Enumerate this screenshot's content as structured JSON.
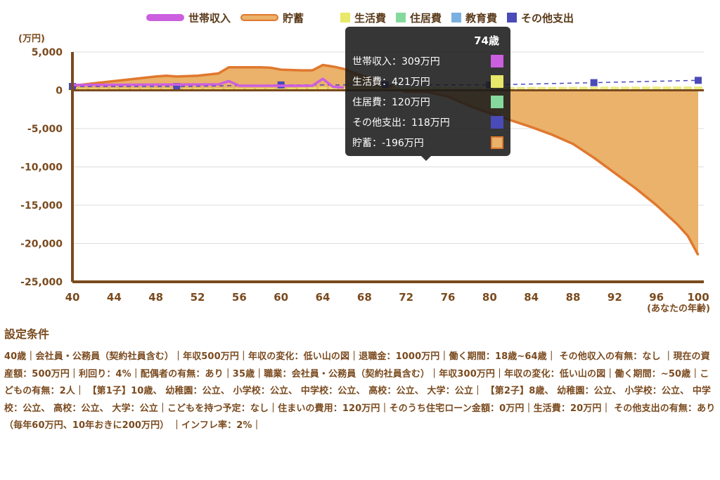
{
  "chart_data": {
    "type": "area",
    "unit_label": "(万円)",
    "xlabel": "(あなたの年齢)",
    "ylim": [
      -25000,
      5000
    ],
    "xlim": [
      40,
      100
    ],
    "y_ticks": [
      "5,000",
      "0",
      "-5,000",
      "-10,000",
      "-15,000",
      "-20,000",
      "-25,000"
    ],
    "y_tick_values": [
      5000,
      0,
      -5000,
      -10000,
      -15000,
      -20000,
      -25000
    ],
    "x_ticks": [
      "40",
      "44",
      "48",
      "52",
      "56",
      "60",
      "64",
      "68",
      "72",
      "76",
      "80",
      "84",
      "88",
      "92",
      "96",
      "100"
    ],
    "x_tick_values": [
      40,
      44,
      48,
      52,
      56,
      60,
      64,
      68,
      72,
      76,
      80,
      84,
      88,
      92,
      96,
      100
    ],
    "legend": [
      {
        "name": "世帯収入",
        "kind": "line",
        "color": "#cc5fe0"
      },
      {
        "name": "貯蓄",
        "kind": "area",
        "color": "#e0782e",
        "fill": "#eab26a"
      },
      {
        "name": "生活費",
        "kind": "bar",
        "color": "#e8e86a"
      },
      {
        "name": "住居費",
        "kind": "bar",
        "color": "#86d99c"
      },
      {
        "name": "教育費",
        "kind": "bar",
        "color": "#7ab0e0"
      },
      {
        "name": "その他支出",
        "kind": "bar",
        "color": "#4a4ab8"
      }
    ],
    "series": [
      {
        "name": "世帯収入",
        "x": [
          40,
          44,
          48,
          50,
          52,
          54,
          55,
          56,
          58,
          60,
          62,
          63,
          64,
          65,
          66
        ],
        "values": [
          700,
          720,
          740,
          760,
          770,
          780,
          1200,
          600,
          600,
          600,
          600,
          600,
          1500,
          450,
          350
        ]
      },
      {
        "name": "貯蓄",
        "x": [
          40,
          44,
          48,
          49,
          50,
          52,
          54,
          55,
          58,
          59,
          60,
          62,
          63,
          64,
          65,
          66,
          68,
          70,
          72,
          74,
          76,
          78,
          80,
          82,
          84,
          86,
          88,
          90,
          92,
          94,
          96,
          98,
          99,
          100
        ],
        "values": [
          600,
          1200,
          1800,
          1900,
          1800,
          1900,
          2200,
          3000,
          3000,
          2950,
          2700,
          2600,
          2600,
          3300,
          3100,
          2800,
          1800,
          700,
          -200,
          -196,
          -800,
          -2000,
          -3000,
          -3900,
          -4800,
          -5800,
          -7000,
          -8800,
          -10800,
          -12800,
          -15000,
          -17500,
          -19000,
          -21500
        ]
      },
      {
        "name": "生活費",
        "x": [
          40,
          50,
          60,
          64,
          70,
          80,
          90,
          100
        ],
        "values": [
          250,
          270,
          300,
          430,
          400,
          420,
          460,
          500
        ]
      },
      {
        "name": "その他支出",
        "x": [
          40,
          50,
          60,
          70,
          80,
          90,
          100
        ],
        "values": [
          500,
          500,
          700,
          700,
          700,
          1000,
          1300
        ]
      }
    ]
  },
  "tooltip": {
    "title": "74歳",
    "rows": [
      {
        "label": "世帯収入：309万円",
        "color": "#cc5fe0"
      },
      {
        "label": "生活費：421万円",
        "color": "#e8e86a"
      },
      {
        "label": "住居費：120万円",
        "color": "#86d99c"
      },
      {
        "label": "その他支出：118万円",
        "color": "#4a4ab8"
      },
      {
        "label": "貯蓄：-196万円",
        "color": "#e0782e"
      }
    ]
  },
  "settings": {
    "title": "設定条件",
    "body": "40歳｜会社員・公務員（契約社員含む）｜年収500万円｜年収の変化：低い山の図｜退職金：1000万円｜働く期間：18歳~64歳｜ その他収入の有無：なし ｜現在の資産額：500万円｜利回り：4%｜配偶者の有無：あり｜35歳｜職業：会社員・公務員（契約社員含む）｜年収300万円｜年収の変化：低い山の図｜働く期間：~50歳｜こどもの有無：2人｜ 【第1子】10歳、 幼稚園：公立、 小学校：公立、 中学校：公立、 高校：公立、 大学：公立｜ 【第2子】8歳、 幼稚園：公立、 小学校：公立、 中学校：公立、 高校：公立、 大学：公立｜こどもを持つ予定：なし｜住まいの費用：120万円｜そのうち住宅ローン金額：0万円｜生活費：20万円｜ その他支出の有無：あり（毎年60万円、10年おきに200万円） ｜インフレ率：2%｜"
  }
}
